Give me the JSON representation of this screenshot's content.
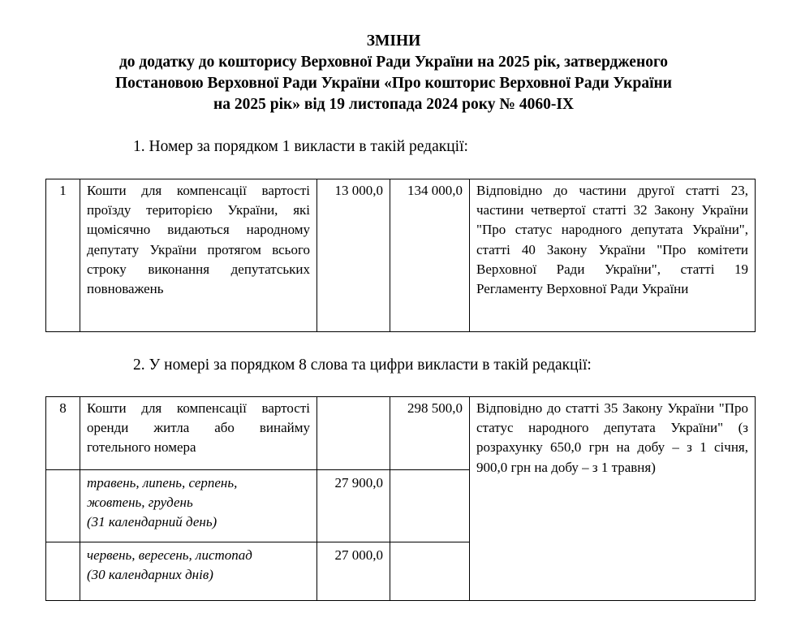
{
  "heading": {
    "line1": "ЗМІНИ",
    "line2": "до додатку до кошторису Верховної Ради України на 2025 рік, затвердженого",
    "line3": "Постановою Верховної Ради України «Про кошторис Верховної Ради України",
    "line4": "на 2025 рік» від 19 листопада 2024 року № 4060-IX"
  },
  "section1": {
    "text": "1. Номер за порядком 1 викласти в такій редакції:",
    "row": {
      "number": "1",
      "description": "Кошти для компенсації вартості проїзду територією України, які щомісячно видаються народному депутату України протягом всього строку виконання депутатських повноважень",
      "amount1": "13 000,0",
      "amount2": "134 000,0",
      "basis": "Відповідно до частини другої статті 23, частини четвертої статті 32 Закону України \"Про статус народного депутата України\", статті 40 Закону України \"Про комітети Верховної Ради України\", статті 19 Регламенту Верховної Ради України"
    }
  },
  "section2": {
    "text": "2. У номері за порядком 8 слова та цифри викласти в такій редакції:",
    "row": {
      "number": "8",
      "description": "Кошти для компенсації вартості оренди житла або винайму готельного номера",
      "amount2": "298 500,0",
      "basis": "Відповідно до статті 35 Закону України \"Про статус народного депутата України\" (з розрахунку 650,0 грн на добу – з 1 січня, 900,0 грн на добу – з 1 травня)"
    },
    "subrows": [
      {
        "months": "травень, липень, серпень, жовтень, грудень",
        "days": "(31 календарний день)",
        "amount1": "27 900,0"
      },
      {
        "months": "червень, вересень, листопад",
        "days": "(30 календарних днів)",
        "amount1": "27 000,0"
      }
    ]
  }
}
